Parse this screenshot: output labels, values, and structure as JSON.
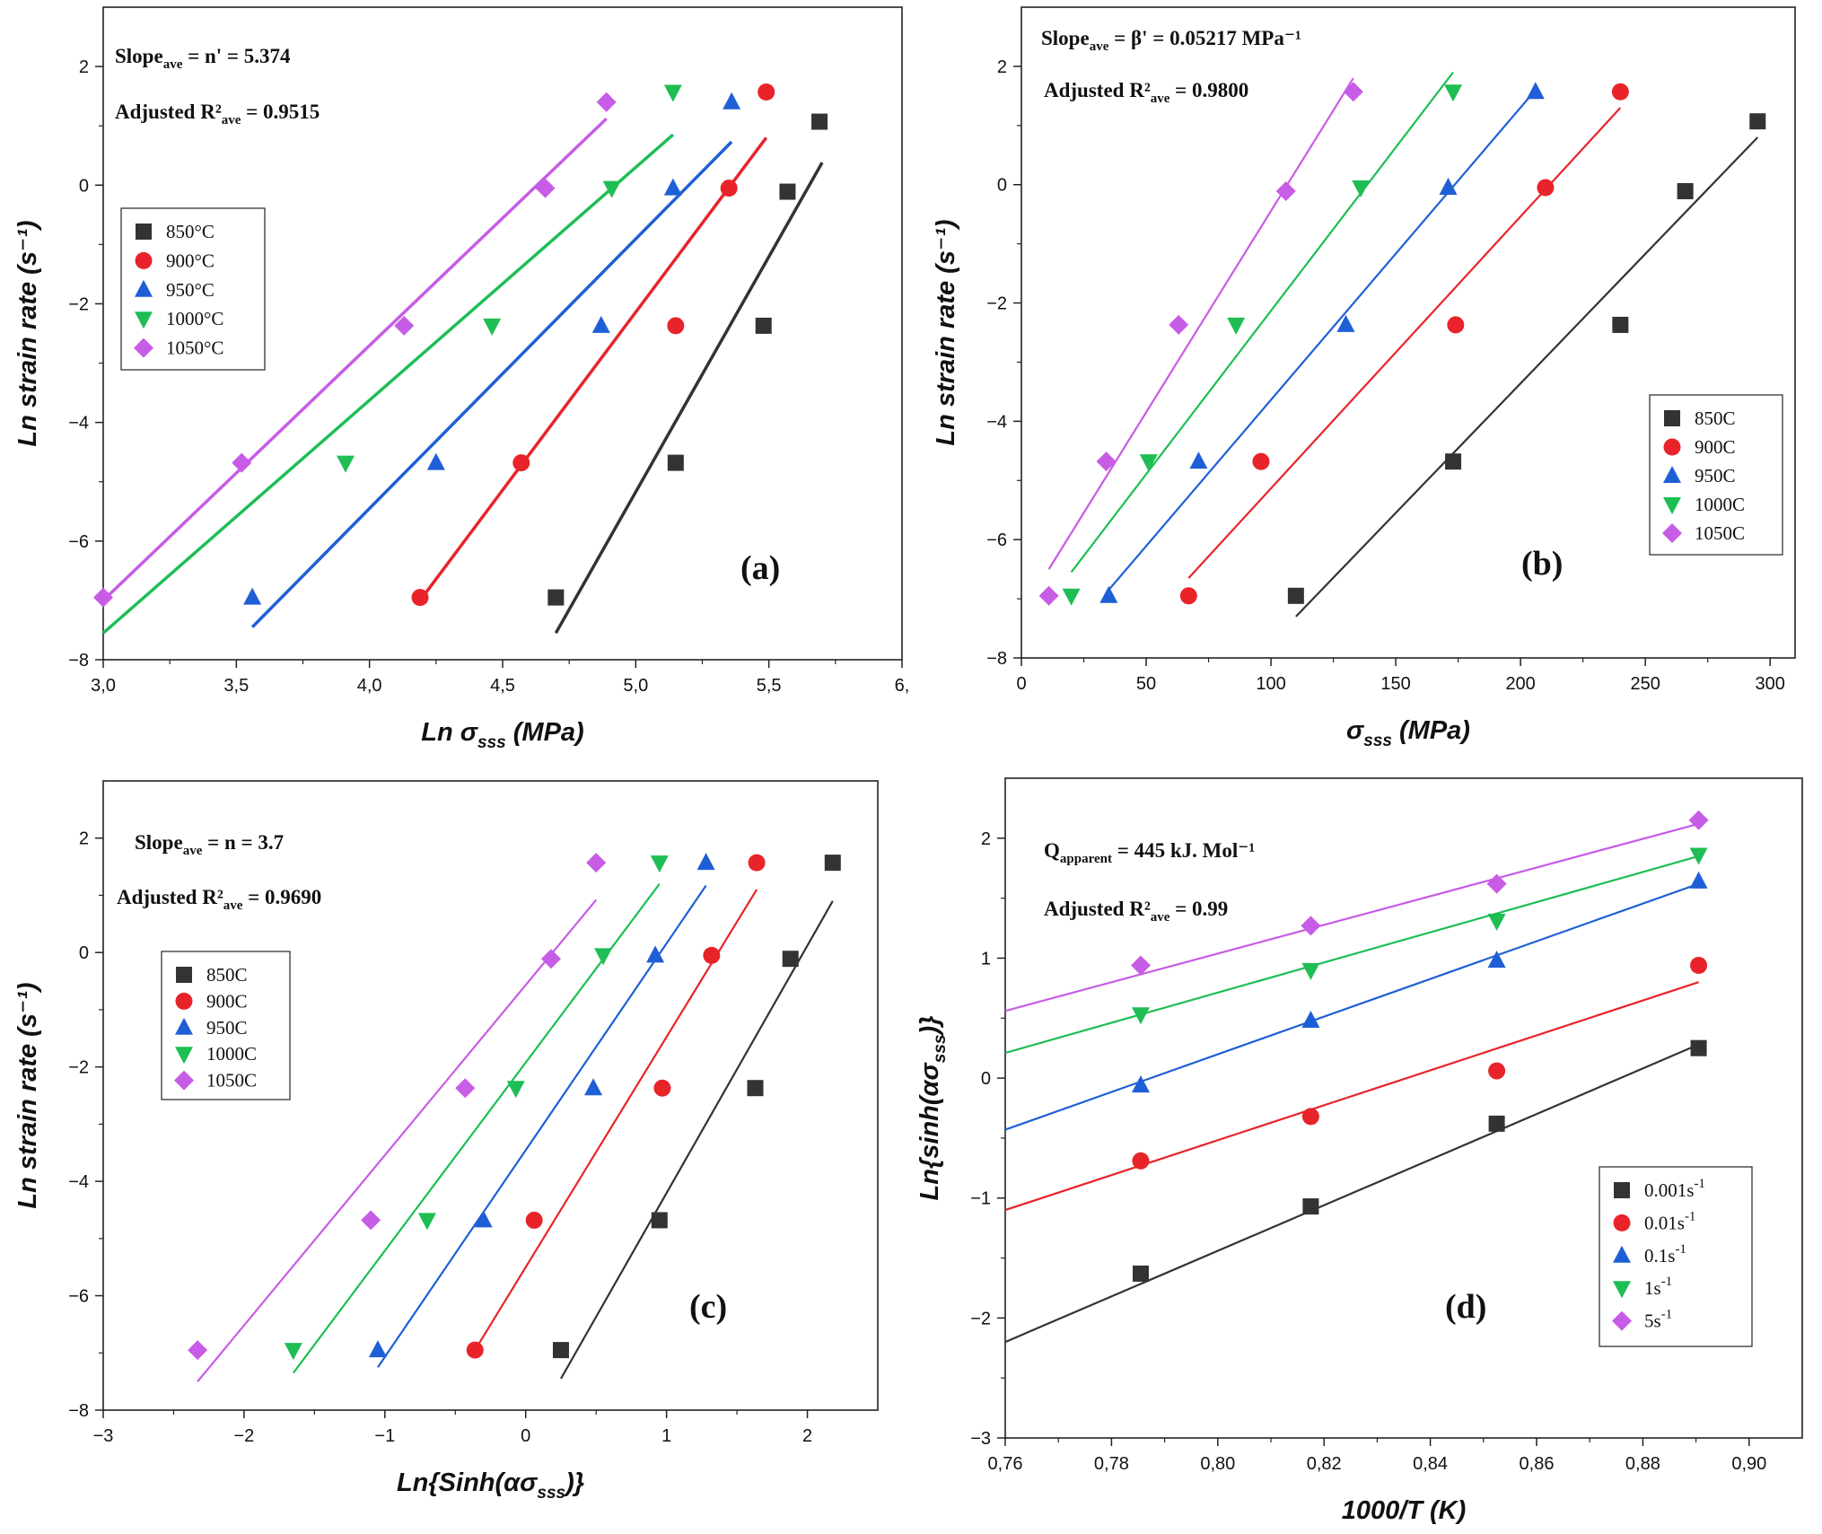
{
  "chart_data": [
    {
      "type": "scatter",
      "panel": "(a)",
      "xlabel": "Ln σsss (MPa)",
      "ylabel": "Ln strain rate (s⁻¹)",
      "xlim": [
        3.0,
        6.0
      ],
      "ylim": [
        -8,
        3
      ],
      "xticks": [
        "3,0",
        "3,5",
        "4,0",
        "4,5",
        "5,0",
        "5,5",
        "6,"
      ],
      "yticks": [
        "−8",
        "−6",
        "−4",
        "−2",
        "0",
        "2"
      ],
      "annotations": [
        "Slopeave = n' = 5.374",
        "Adjusted R²ave = 0.9515"
      ],
      "series": [
        {
          "name": "850°C",
          "color": "#333333",
          "marker": "square",
          "x": [
            4.7,
            5.15,
            5.48,
            5.57,
            5.69
          ],
          "y": [
            -6.95,
            -4.68,
            -2.37,
            -0.11,
            1.07
          ],
          "fit": {
            "x": [
              4.7,
              5.7
            ],
            "y": [
              -7.55,
              0.38
            ]
          }
        },
        {
          "name": "900°C",
          "color": "#e8242a",
          "marker": "circle",
          "x": [
            4.19,
            4.57,
            5.15,
            5.35,
            5.49
          ],
          "y": [
            -6.95,
            -4.68,
            -2.37,
            -0.05,
            1.57
          ],
          "fit": {
            "x": [
              4.19,
              5.49
            ],
            "y": [
              -7.0,
              0.8
            ]
          }
        },
        {
          "name": "950°C",
          "color": "#1f5fd6",
          "marker": "triangle-up",
          "x": [
            3.56,
            4.25,
            4.87,
            5.14,
            5.36
          ],
          "y": [
            -6.95,
            -4.68,
            -2.37,
            -0.05,
            1.4
          ],
          "fit": {
            "x": [
              3.56,
              5.36
            ],
            "y": [
              -7.45,
              0.73
            ]
          }
        },
        {
          "name": "1000°C",
          "color": "#1ebe55",
          "marker": "triangle-down",
          "x": [
            3.91,
            4.46,
            4.91,
            5.14
          ],
          "y": [
            -4.68,
            -2.37,
            -0.05,
            1.57
          ],
          "fit": {
            "x": [
              3.0,
              5.14
            ],
            "y": [
              -7.55,
              0.85
            ]
          }
        },
        {
          "name": "1050°C",
          "color": "#c75ce6",
          "marker": "diamond",
          "x": [
            3.0,
            3.52,
            4.13,
            4.66,
            4.89
          ],
          "y": [
            -6.95,
            -4.68,
            -2.37,
            -0.05,
            1.4
          ],
          "fit": {
            "x": [
              3.0,
              4.89
            ],
            "y": [
              -7.0,
              1.12
            ]
          }
        }
      ]
    },
    {
      "type": "scatter",
      "panel": "(b)",
      "xlabel": "σsss (MPa)",
      "ylabel": "Ln strain rate (s⁻¹)",
      "xlim": [
        0,
        310
      ],
      "ylim": [
        -8,
        3
      ],
      "xticks": [
        "0",
        "50",
        "100",
        "150",
        "200",
        "250",
        "300"
      ],
      "yticks": [
        "−8",
        "−6",
        "−4",
        "−2",
        "0",
        "2"
      ],
      "annotations": [
        "Slopeave = β' = 0.05217 MPa⁻¹",
        "Adjusted R²ave = 0.9800"
      ],
      "series": [
        {
          "name": "850C",
          "color": "#333333",
          "marker": "square",
          "x": [
            110,
            173,
            240,
            266,
            295
          ],
          "y": [
            -6.95,
            -4.68,
            -2.37,
            -0.11,
            1.07
          ],
          "fit": {
            "x": [
              110,
              295
            ],
            "y": [
              -7.3,
              0.8
            ]
          }
        },
        {
          "name": "900C",
          "color": "#e8242a",
          "marker": "circle",
          "x": [
            67,
            96,
            174,
            210,
            240
          ],
          "y": [
            -6.95,
            -4.68,
            -2.37,
            -0.05,
            1.57
          ],
          "fit": {
            "x": [
              67,
              240
            ],
            "y": [
              -6.65,
              1.3
            ]
          }
        },
        {
          "name": "950C",
          "color": "#1f5fd6",
          "marker": "triangle-up",
          "x": [
            35,
            71,
            130,
            171,
            206
          ],
          "y": [
            -6.95,
            -4.68,
            -2.37,
            -0.05,
            1.57
          ],
          "fit": {
            "x": [
              35,
              206
            ],
            "y": [
              -6.85,
              1.6
            ]
          }
        },
        {
          "name": "1000C",
          "color": "#1ebe55",
          "marker": "triangle-down",
          "x": [
            20,
            51,
            86,
            136,
            173
          ],
          "y": [
            -6.95,
            -4.68,
            -2.37,
            -0.05,
            1.57
          ],
          "fit": {
            "x": [
              20,
              173
            ],
            "y": [
              -6.55,
              1.9
            ]
          }
        },
        {
          "name": "1050C",
          "color": "#c75ce6",
          "marker": "diamond",
          "x": [
            11,
            34,
            63,
            106,
            133
          ],
          "y": [
            -6.95,
            -4.68,
            -2.37,
            -0.11,
            1.57
          ],
          "fit": {
            "x": [
              11,
              133
            ],
            "y": [
              -6.5,
              1.8
            ]
          }
        }
      ]
    },
    {
      "type": "scatter",
      "panel": "(c)",
      "xlabel": "Ln{Sinh(ασsss)}",
      "ylabel": "Ln strain rate (s⁻¹)",
      "xlim": [
        -3.0,
        2.5
      ],
      "ylim": [
        -8,
        3
      ],
      "xticks": [
        "−3",
        "−2",
        "−1",
        "0",
        "1",
        "2"
      ],
      "yticks": [
        "−8",
        "−6",
        "−4",
        "−2",
        "0",
        "2"
      ],
      "annotations": [
        "Slopeave = n = 3.7",
        "Adjusted R²ave = 0.9690"
      ],
      "series": [
        {
          "name": "850C",
          "color": "#333333",
          "marker": "square",
          "x": [
            0.25,
            0.95,
            1.63,
            1.88,
            2.18
          ],
          "y": [
            -6.95,
            -4.68,
            -2.37,
            -0.11,
            1.57
          ],
          "fit": {
            "x": [
              0.25,
              2.18
            ],
            "y": [
              -7.45,
              0.9
            ]
          }
        },
        {
          "name": "900C",
          "color": "#e8242a",
          "marker": "circle",
          "x": [
            -0.36,
            0.06,
            0.97,
            1.32,
            1.64
          ],
          "y": [
            -6.95,
            -4.68,
            -2.37,
            -0.05,
            1.57
          ],
          "fit": {
            "x": [
              -0.36,
              1.64
            ],
            "y": [
              -6.95,
              1.1
            ]
          }
        },
        {
          "name": "950C",
          "color": "#1f5fd6",
          "marker": "triangle-up",
          "x": [
            -1.05,
            -0.3,
            0.48,
            0.92,
            1.28
          ],
          "y": [
            -6.95,
            -4.68,
            -2.37,
            -0.05,
            1.57
          ],
          "fit": {
            "x": [
              -1.05,
              1.28
            ],
            "y": [
              -7.25,
              1.17
            ]
          }
        },
        {
          "name": "1000C",
          "color": "#1ebe55",
          "marker": "triangle-down",
          "x": [
            -1.65,
            -0.7,
            -0.07,
            0.55,
            0.95
          ],
          "y": [
            -6.95,
            -4.68,
            -2.37,
            -0.05,
            1.57
          ],
          "fit": {
            "x": [
              -1.65,
              0.95
            ],
            "y": [
              -7.35,
              1.2
            ]
          }
        },
        {
          "name": "1050C",
          "color": "#c75ce6",
          "marker": "diamond",
          "x": [
            -2.33,
            -1.1,
            -0.43,
            0.18,
            0.5
          ],
          "y": [
            -6.95,
            -4.68,
            -2.37,
            -0.11,
            1.57
          ],
          "fit": {
            "x": [
              -2.33,
              0.5
            ],
            "y": [
              -7.5,
              0.92
            ]
          }
        }
      ]
    },
    {
      "type": "scatter",
      "panel": "(d)",
      "xlabel": "1000/T (K)",
      "ylabel": "Ln{sinh(ασsss)}",
      "xlim": [
        0.76,
        0.91
      ],
      "ylim": [
        -3,
        2.5
      ],
      "xticks": [
        "0,76",
        "0,78",
        "0,80",
        "0,82",
        "0,84",
        "0,86",
        "0,88",
        "0,90"
      ],
      "yticks": [
        "−3",
        "−2",
        "−1",
        "0",
        "1",
        "2"
      ],
      "annotations": [
        "Qapparent = 445 kJ. Mol⁻¹",
        "Adjusted R²ave = 0.99"
      ],
      "series": [
        {
          "name": "0.001s⁻¹",
          "color": "#333333",
          "marker": "square",
          "x": [
            0.7855,
            0.8175,
            0.8525,
            0.8905
          ],
          "y": [
            -1.63,
            -1.07,
            -0.38,
            0.25
          ],
          "fit": {
            "x": [
              0.76,
              0.8905
            ],
            "y": [
              -2.2,
              0.28
            ]
          }
        },
        {
          "name": "0.01s⁻¹",
          "color": "#e8242a",
          "marker": "circle",
          "x": [
            0.7855,
            0.8175,
            0.8525,
            0.8905
          ],
          "y": [
            -0.69,
            -0.32,
            0.06,
            0.94
          ],
          "fit": {
            "x": [
              0.76,
              0.8905
            ],
            "y": [
              -1.1,
              0.8
            ]
          }
        },
        {
          "name": "0.1s⁻¹",
          "color": "#1f5fd6",
          "marker": "triangle-up",
          "x": [
            0.7855,
            0.8175,
            0.8525,
            0.8905
          ],
          "y": [
            -0.06,
            0.48,
            0.98,
            1.64
          ],
          "fit": {
            "x": [
              0.76,
              0.8905
            ],
            "y": [
              -0.43,
              1.62
            ]
          }
        },
        {
          "name": "1s⁻¹",
          "color": "#1ebe55",
          "marker": "triangle-down",
          "x": [
            0.7855,
            0.8175,
            0.8525,
            0.8905
          ],
          "y": [
            0.53,
            0.9,
            1.31,
            1.86
          ],
          "fit": {
            "x": [
              0.76,
              0.8905
            ],
            "y": [
              0.21,
              1.85
            ]
          }
        },
        {
          "name": "5s⁻¹",
          "color": "#c75ce6",
          "marker": "diamond",
          "x": [
            0.7855,
            0.8175,
            0.8525,
            0.8905
          ],
          "y": [
            0.94,
            1.27,
            1.62,
            2.15
          ],
          "fit": {
            "x": [
              0.76,
              0.8905
            ],
            "y": [
              0.56,
              2.12
            ]
          }
        }
      ]
    }
  ]
}
